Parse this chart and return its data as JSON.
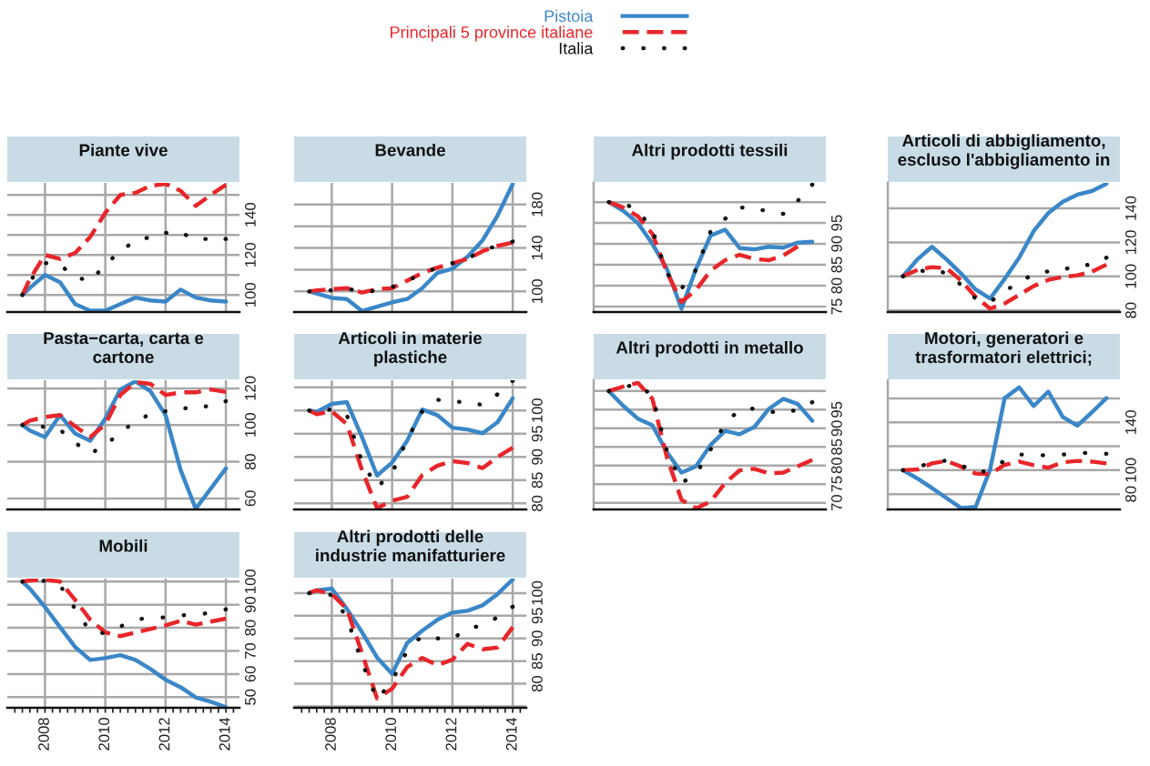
{
  "chart_data": [
    {
      "type": "line",
      "title": "Piante vive",
      "legend": "top",
      "grid": true,
      "tick_labels": "y",
      "x": [
        2007.25,
        2007.5,
        2008,
        2008.5,
        2009,
        2009.5,
        2010,
        2010.5,
        2011,
        2011.5,
        2012,
        2012.5,
        2013,
        2013.5,
        2014
      ],
      "xlim": [
        2006.75,
        2014.45
      ],
      "xticks": [
        2008,
        2010,
        2012,
        2014
      ],
      "ylim": [
        91.5,
        156
      ],
      "yticks": [
        100,
        {
          "value": 110,
          "label": null
        },
        120,
        {
          "value": 130,
          "label": null
        },
        140,
        {
          "value": 150,
          "label": null
        }
      ],
      "series": [
        {
          "name": "Pistoia",
          "color": "#3a87c8",
          "line_style": "solid",
          "values": [
            100,
            103.6,
            110,
            106.4,
            95.5,
            92.2,
            92.2,
            95.5,
            98.7,
            97.3,
            96.7,
            102.7,
            98.7,
            97.3,
            96.7
          ]
        },
        {
          "name": "Principali 5 province italiane",
          "color": "#e8262a",
          "line_style": "dashed",
          "values": [
            100,
            108,
            120,
            118,
            121,
            129,
            141,
            150,
            151,
            154.5,
            155.5,
            152,
            144.5,
            150,
            155
          ]
        },
        {
          "name": "Italia",
          "color": "#111111",
          "line_style": "dotted",
          "values": [
            100,
            107,
            116,
            115,
            109,
            107,
            115,
            122,
            127,
            129,
            131,
            131,
            128,
            128,
            128
          ]
        }
      ]
    },
    {
      "type": "line",
      "title": "Bevande",
      "grid": true,
      "tick_labels": "y",
      "x": [
        2007.25,
        2007.5,
        2008,
        2008.5,
        2009,
        2009.5,
        2010,
        2010.5,
        2011,
        2011.5,
        2012,
        2012.5,
        2013,
        2013.5,
        2014
      ],
      "xlim": [
        2006.75,
        2014.45
      ],
      "xticks": [
        2008,
        2010,
        2012,
        2014
      ],
      "ylim": [
        81,
        200
      ],
      "yticks": [
        100,
        {
          "value": 120,
          "label": null
        },
        140,
        {
          "value": 160,
          "label": null
        },
        180
      ],
      "series": [
        {
          "color": "#3a87c8",
          "line_style": "solid",
          "values": [
            100,
            98,
            94,
            93,
            82,
            86,
            90,
            93,
            103,
            117,
            121,
            132,
            147,
            170,
            199
          ]
        },
        {
          "color": "#e8262a",
          "line_style": "dashed",
          "values": [
            100,
            101,
            102,
            103,
            99,
            102,
            103,
            110,
            117,
            122,
            126,
            130,
            137,
            142,
            145
          ]
        },
        {
          "color": "#111111",
          "line_style": "dotted",
          "values": [
            100,
            101,
            101,
            103,
            99,
            101,
            104,
            110,
            116,
            122,
            126,
            130,
            138,
            142,
            146
          ]
        }
      ]
    },
    {
      "type": "line",
      "title": "Altri prodotti tessili",
      "grid": "y",
      "tick_labels": "y",
      "categories": [
        null,
        null,
        null,
        null,
        null,
        null,
        null,
        null,
        null,
        null,
        null,
        null,
        null,
        null,
        null
      ],
      "ylim": [
        73.7,
        104.6
      ],
      "yticks": [
        75,
        80,
        85,
        90,
        95,
        {
          "value": 100,
          "label": null
        }
      ],
      "series": [
        {
          "color": "#3a87c8",
          "line_style": "solid",
          "values": [
            100,
            97.9,
            95,
            90,
            84,
            74.5,
            84,
            92,
            93.4,
            89,
            88.7,
            89.3,
            89.1,
            90.3,
            90.5
          ]
        },
        {
          "color": "#e8262a",
          "line_style": "dashed",
          "values": [
            100,
            98.7,
            96.6,
            92.4,
            83.2,
            76.1,
            79,
            83.6,
            86.1,
            87.4,
            86.4,
            86.1,
            87.2,
            89.4,
            null
          ]
        },
        {
          "color": "#111111",
          "line_style": "dotted",
          "values": [
            100,
            99.7,
            98.1,
            93.4,
            82.9,
            79.3,
            83.8,
            93,
            96,
            98.7,
            98.6,
            97.7,
            97.2,
            100.3,
            104.2
          ]
        }
      ]
    },
    {
      "type": "line",
      "title": "Articoli di abbigliamento,\nescluso l'abbigliamento in",
      "grid": "y",
      "tick_labels": "y",
      "categories": [
        null,
        null,
        null,
        null,
        null,
        null,
        null,
        null,
        null,
        null,
        null,
        null,
        null,
        null,
        null
      ],
      "ylim": [
        79,
        155
      ],
      "yticks": [
        80,
        100,
        120,
        140
      ],
      "series": [
        {
          "color": "#3a87c8",
          "line_style": "solid",
          "values": [
            100,
            110,
            117.4,
            110,
            101.7,
            92.3,
            87,
            98.5,
            111,
            126.7,
            137.2,
            143.9,
            148.1,
            150.2,
            154.5
          ]
        },
        {
          "color": "#e8262a",
          "line_style": "dashed",
          "values": [
            100,
            103.8,
            105.4,
            104.8,
            97.5,
            88,
            81,
            84,
            89.1,
            94.3,
            97.9,
            99.6,
            100.6,
            102.7,
            106.9
          ]
        },
        {
          "color": "#111111",
          "line_style": "dotted",
          "values": [
            100,
            103,
            103.5,
            102,
            95,
            87,
            85,
            91,
            97,
            101,
            103,
            104,
            106,
            107,
            111
          ]
        }
      ]
    },
    {
      "type": "line",
      "title": "Pasta−carta, carta e\ncartone",
      "grid": true,
      "tick_labels": "y",
      "x": [
        2007.25,
        2007.5,
        2008,
        2008.5,
        2009,
        2009.5,
        2010,
        2010.5,
        2011,
        2011.5,
        2012,
        2012.5,
        2013,
        2013.5,
        2014
      ],
      "xlim": [
        2006.75,
        2014.45
      ],
      "xticks": [
        2008,
        2010,
        2012,
        2014
      ],
      "ylim": [
        54,
        124.4
      ],
      "yticks": [
        60,
        80,
        100,
        120
      ],
      "series": [
        {
          "color": "#3a87c8",
          "line_style": "solid",
          "values": [
            100,
            97,
            93.4,
            105.4,
            95.4,
            91.4,
            103.4,
            119.4,
            123.8,
            118.4,
            105.4,
            75.4,
            54.4,
            65.4,
            76.4
          ]
        },
        {
          "color": "#e8262a",
          "line_style": "dashed",
          "values": [
            100,
            102.4,
            104.4,
            105.4,
            99.4,
            93.4,
            100.4,
            116.4,
            123.4,
            122.4,
            116.4,
            117.8,
            117.8,
            119.4,
            118
          ]
        },
        {
          "color": "#111111",
          "line_style": "dotted",
          "values": [
            100,
            100,
            99,
            97.4,
            90.4,
            84.4,
            89,
            96,
            102,
            106,
            107.5,
            109,
            109.5,
            110.5,
            113
          ]
        }
      ]
    },
    {
      "type": "line",
      "title": "Articoli in materie\nplastiche",
      "grid": true,
      "tick_labels": "y",
      "x": [
        2007.25,
        2007.5,
        2008,
        2008.5,
        2009,
        2009.5,
        2010,
        2010.5,
        2011,
        2011.5,
        2012,
        2012.5,
        2013,
        2013.5,
        2014
      ],
      "xlim": [
        2006.75,
        2014.45
      ],
      "xticks": [
        2008,
        2010,
        2012,
        2014
      ],
      "ylim": [
        78.7,
        106.5
      ],
      "yticks": [
        80,
        85,
        90,
        95,
        100,
        {
          "value": 105,
          "label": null
        }
      ],
      "series": [
        {
          "color": "#3a87c8",
          "line_style": "solid",
          "values": [
            100,
            99.7,
            101.4,
            101.8,
            94.3,
            86,
            88.8,
            93.5,
            100.2,
            99,
            96.3,
            95.9,
            95.1,
            97.5,
            102.6
          ]
        },
        {
          "color": "#e8262a",
          "line_style": "dashed",
          "values": [
            100,
            99.2,
            99.8,
            97.1,
            87.2,
            79,
            80.6,
            81.4,
            86.1,
            88.1,
            89.1,
            88.7,
            87.6,
            90,
            92
          ]
        },
        {
          "color": "#111111",
          "line_style": "dotted",
          "values": [
            100,
            99.5,
            100.3,
            99,
            89,
            83.5,
            86.5,
            93.8,
            99.8,
            102.3,
            102,
            101.7,
            101.2,
            103.5,
            106.4
          ]
        }
      ]
    },
    {
      "type": "line",
      "title": "Altri prodotti in metallo",
      "grid": "y",
      "tick_labels": "y",
      "categories": [
        null,
        null,
        null,
        null,
        null,
        null,
        null,
        null,
        null,
        null,
        null,
        null,
        null,
        null,
        null
      ],
      "ylim": [
        68.2,
        102.9
      ],
      "yticks": [
        70,
        75,
        80,
        85,
        90,
        95,
        {
          "value": 100,
          "label": null
        }
      ],
      "series": [
        {
          "color": "#3a87c8",
          "line_style": "solid",
          "values": [
            100,
            96,
            92.6,
            90.8,
            83.6,
            78.1,
            79.8,
            85.5,
            89.3,
            88.4,
            90.3,
            95.2,
            97.9,
            96.5,
            92
          ]
        },
        {
          "color": "#e8262a",
          "line_style": "dashed",
          "values": [
            100,
            101.2,
            102.2,
            97.9,
            82.2,
            70.8,
            68.5,
            70.3,
            75.3,
            78.7,
            79.1,
            77.9,
            78.1,
            79.8,
            81.5
          ]
        },
        {
          "color": "#111111",
          "line_style": "dotted",
          "values": [
            100,
            101,
            101.9,
            98.7,
            83.9,
            75.3,
            77.7,
            84.3,
            91.3,
            95,
            95.3,
            94.5,
            94.1,
            95,
            97
          ]
        }
      ]
    },
    {
      "type": "line",
      "title": "Motori, generatori e\ntrasformatori elettrici;",
      "grid": "y",
      "tick_labels": "y",
      "categories": [
        null,
        null,
        null,
        null,
        null,
        null,
        null,
        null,
        null,
        null,
        null,
        null,
        null,
        null,
        null
      ],
      "ylim": [
        67.2,
        175.2
      ],
      "yticks": [
        80,
        100,
        {
          "value": 120,
          "label": null
        },
        140,
        {
          "value": 160,
          "label": null
        }
      ],
      "series": [
        {
          "color": "#3a87c8",
          "line_style": "solid",
          "values": [
            100,
            93.1,
            85.1,
            76.7,
            68.4,
            69.3,
            100.6,
            160.3,
            169.3,
            153.7,
            165.7,
            144.5,
            137.3,
            148.4,
            160.3
          ]
        },
        {
          "color": "#e8262a",
          "line_style": "dashed",
          "values": [
            100,
            100.6,
            105.7,
            107.8,
            103,
            97.3,
            96.7,
            104.5,
            107.2,
            104.2,
            102.1,
            106.6,
            107.8,
            107.2,
            105.7
          ]
        },
        {
          "color": "#111111",
          "line_style": "dotted",
          "values": [
            100,
            102.7,
            106.3,
            108.1,
            104.5,
            97.3,
            100.3,
            108.1,
            113.1,
            113.1,
            112.2,
            113.1,
            114.6,
            114.3,
            113.7
          ]
        }
      ]
    },
    {
      "type": "line",
      "title": "Mobili",
      "grid": true,
      "x": [
        2007.25,
        2007.5,
        2008,
        2008.5,
        2009,
        2009.5,
        2010,
        2010.5,
        2011,
        2011.5,
        2012,
        2012.5,
        2013,
        2013.5,
        2014
      ],
      "xlim": [
        2006.75,
        2014.45
      ],
      "xticks": [
        {
          "value": 2007,
          "label": null
        },
        {
          "value": 2007.25,
          "label": null
        },
        {
          "value": 2007.5,
          "label": null
        },
        {
          "value": 2007.75,
          "label": null
        },
        2008,
        {
          "value": 2008.25,
          "label": null
        },
        {
          "value": 2008.5,
          "label": null
        },
        {
          "value": 2008.75,
          "label": null
        },
        {
          "value": 2009,
          "label": null
        },
        {
          "value": 2009.25,
          "label": null
        },
        {
          "value": 2009.5,
          "label": null
        },
        {
          "value": 2009.75,
          "label": null
        },
        2010,
        {
          "value": 2010.25,
          "label": null
        },
        {
          "value": 2010.5,
          "label": null
        },
        {
          "value": 2010.75,
          "label": null
        },
        {
          "value": 2011,
          "label": null
        },
        {
          "value": 2011.25,
          "label": null
        },
        {
          "value": 2011.5,
          "label": null
        },
        {
          "value": 2011.75,
          "label": null
        },
        2012,
        {
          "value": 2012.25,
          "label": null
        },
        {
          "value": 2012.5,
          "label": null
        },
        {
          "value": 2012.75,
          "label": null
        },
        {
          "value": 2013,
          "label": null
        },
        {
          "value": 2013.25,
          "label": null
        },
        {
          "value": 2013.5,
          "label": null
        },
        {
          "value": 2013.75,
          "label": null
        },
        2014,
        {
          "value": 2014.25,
          "label": null
        }
      ],
      "ylim": [
        45.4,
        101.3
      ],
      "yticks": [
        50,
        60,
        70,
        80,
        90,
        100
      ],
      "series": [
        {
          "color": "#3a87c8",
          "line_style": "solid",
          "values": [
            100,
            96.9,
            89,
            80.3,
            71.7,
            66.1,
            66.9,
            68.2,
            66.1,
            62.2,
            57.5,
            54.3,
            49.9,
            48,
            45.7
          ]
        },
        {
          "color": "#e8262a",
          "line_style": "dashed",
          "values": [
            100,
            100.5,
            100.8,
            100,
            92.1,
            83.5,
            78,
            76.4,
            78,
            79.5,
            81.1,
            83,
            81.4,
            82.7,
            84
          ]
        },
        {
          "color": "#111111",
          "line_style": "dotted",
          "values": [
            100,
            100.5,
            100.3,
            98.4,
            88.2,
            78.3,
            77.6,
            80.6,
            83.5,
            84.5,
            84.5,
            85.4,
            85.7,
            86.5,
            88
          ]
        }
      ]
    },
    {
      "type": "line",
      "title": "Altri prodotti delle\nindustrie manifatturiere",
      "grid": true,
      "x": [
        2007.25,
        2007.5,
        2008,
        2008.5,
        2009,
        2009.5,
        2010,
        2010.5,
        2011,
        2011.5,
        2012,
        2012.5,
        2013,
        2013.5,
        2014
      ],
      "xlim": [
        2006.75,
        2014.45
      ],
      "xticks": [
        {
          "value": 2007,
          "label": null
        },
        {
          "value": 2007.25,
          "label": null
        },
        {
          "value": 2007.5,
          "label": null
        },
        {
          "value": 2007.75,
          "label": null
        },
        2008,
        {
          "value": 2008.25,
          "label": null
        },
        {
          "value": 2008.5,
          "label": null
        },
        {
          "value": 2008.75,
          "label": null
        },
        {
          "value": 2009,
          "label": null
        },
        {
          "value": 2009.25,
          "label": null
        },
        {
          "value": 2009.5,
          "label": null
        },
        {
          "value": 2009.75,
          "label": null
        },
        2010,
        {
          "value": 2010.25,
          "label": null
        },
        {
          "value": 2010.5,
          "label": null
        },
        {
          "value": 2010.75,
          "label": null
        },
        {
          "value": 2011,
          "label": null
        },
        {
          "value": 2011.25,
          "label": null
        },
        {
          "value": 2011.5,
          "label": null
        },
        {
          "value": 2011.75,
          "label": null
        },
        2012,
        {
          "value": 2012.25,
          "label": null
        },
        {
          "value": 2012.5,
          "label": null
        },
        {
          "value": 2012.75,
          "label": null
        },
        {
          "value": 2013,
          "label": null
        },
        {
          "value": 2013.25,
          "label": null
        },
        {
          "value": 2013.5,
          "label": null
        },
        {
          "value": 2013.75,
          "label": null
        },
        2014,
        {
          "value": 2014.25,
          "label": null
        }
      ],
      "ylim": [
        74.7,
        103.2
      ],
      "yticks": [
        {
          "value": 75,
          "label": null
        },
        80,
        85,
        90,
        95,
        100
      ],
      "series": [
        {
          "color": "#3a87c8",
          "line_style": "solid",
          "values": [
            100,
            100.6,
            101,
            96.5,
            91.4,
            85.8,
            82.2,
            89,
            91.7,
            94.1,
            95.7,
            96.1,
            97.3,
            99.8,
            103
          ]
        },
        {
          "color": "#e8262a",
          "line_style": "dashed",
          "values": [
            100,
            100.6,
            99.8,
            96.5,
            86.8,
            76.8,
            78.9,
            83.7,
            85.7,
            84.1,
            85.3,
            88.8,
            87.6,
            88,
            92.5
          ]
        },
        {
          "color": "#111111",
          "line_style": "dotted",
          "values": [
            100,
            99.8,
            99.6,
            94.6,
            84.7,
            76.5,
            80.6,
            87.3,
            90.6,
            90,
            89.8,
            92.4,
            92.7,
            94.7,
            97
          ]
        }
      ]
    }
  ]
}
